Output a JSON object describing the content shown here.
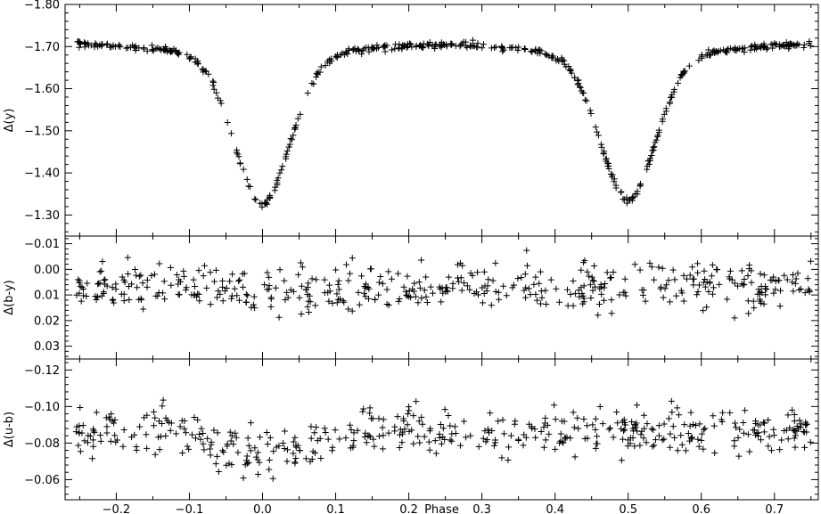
{
  "chart_data": [
    {
      "panel": "top",
      "type": "scatter",
      "marker": "+",
      "xlabel": "",
      "ylabel": "Δ(y)",
      "xlim": [
        -0.27,
        0.76
      ],
      "ylim": [
        -1.25,
        -1.8
      ],
      "y_inverted": true,
      "x_ticks": [
        -0.2,
        -0.1,
        0.0,
        0.1,
        0.2,
        0.3,
        0.4,
        0.5,
        0.6,
        0.7
      ],
      "x_tick_labels": [
        "",
        "",
        "",
        "",
        "",
        "",
        "",
        "",
        "",
        ""
      ],
      "y_ticks": [
        -1.3,
        -1.4,
        -1.5,
        -1.6,
        -1.7,
        -1.8
      ],
      "y_tick_labels": [
        "-1.30",
        "-1.40",
        "-1.50",
        "-1.60",
        "-1.70",
        "-1.80"
      ],
      "curve": {
        "description": "eclipsing binary light curve; primary minimum at phase 0.00, secondary minimum at phase 0.50",
        "max_level": -1.705,
        "primary_min": {
          "phase": 0.0,
          "value": -1.325,
          "width": 0.052
        },
        "secondary_min": {
          "phase": 0.5,
          "value": -1.335,
          "width": 0.052
        },
        "scatter_sigma": 0.004
      },
      "n_points": 520
    },
    {
      "panel": "middle",
      "type": "scatter",
      "marker": "+",
      "xlabel": "",
      "ylabel": "Δ(b-y)",
      "xlim": [
        -0.27,
        0.76
      ],
      "ylim": [
        0.035,
        -0.013
      ],
      "y_inverted": true,
      "x_ticks": [
        -0.2,
        -0.1,
        0.0,
        0.1,
        0.2,
        0.3,
        0.4,
        0.5,
        0.6,
        0.7
      ],
      "x_tick_labels": [
        "",
        "",
        "",
        "",
        "",
        "",
        "",
        "",
        "",
        ""
      ],
      "y_ticks": [
        0.03,
        0.02,
        0.01,
        0.0,
        -0.01
      ],
      "y_tick_labels": [
        "0.03",
        "0.02",
        "0.01",
        "0.00",
        "-0.01"
      ],
      "mean": 0.007,
      "mean_at_primary": 0.011,
      "scatter_sigma": 0.0045,
      "n_points": 470
    },
    {
      "panel": "bottom",
      "type": "scatter",
      "marker": "+",
      "xlabel": "Phase",
      "ylabel": "Δ(u-b)",
      "xlim": [
        -0.27,
        0.76
      ],
      "ylim": [
        -0.049,
        -0.126
      ],
      "y_inverted": true,
      "x_ticks": [
        -0.2,
        -0.1,
        0.0,
        0.1,
        0.2,
        0.3,
        0.4,
        0.5,
        0.6,
        0.7
      ],
      "x_tick_labels": [
        "-0.2",
        "-0.1",
        "0.0",
        "0.1",
        "0.2",
        "0.3",
        "0.4",
        "0.5",
        "0.6",
        "0.7"
      ],
      "y_ticks": [
        -0.06,
        -0.08,
        -0.1,
        -0.12
      ],
      "y_tick_labels": [
        "-0.06",
        "-0.08",
        "-0.10",
        "-0.12"
      ],
      "mean": -0.086,
      "mean_at_primary": -0.073,
      "scatter_sigma": 0.0065,
      "n_points": 470
    }
  ]
}
